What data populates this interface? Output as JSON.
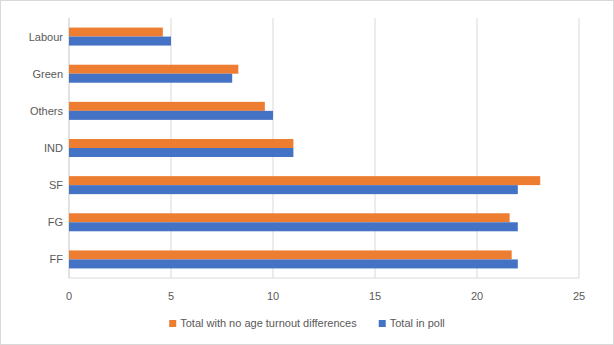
{
  "chart_data": {
    "type": "bar",
    "orientation": "horizontal",
    "categories": [
      "FF",
      "FG",
      "SF",
      "IND",
      "Others",
      "Green",
      "Labour"
    ],
    "series": [
      {
        "name": "Total with no age turnout differences",
        "color": "#ed7d31",
        "values": [
          21.7,
          21.6,
          23.1,
          11.0,
          9.6,
          8.3,
          4.6
        ]
      },
      {
        "name": "Total in poll",
        "color": "#4472c4",
        "values": [
          22.0,
          22.0,
          22.0,
          11.0,
          10.0,
          8.0,
          5.0
        ]
      }
    ],
    "xlim": [
      0,
      25
    ],
    "xticks": [
      0,
      5,
      10,
      15,
      20,
      25
    ],
    "grid": true,
    "legend": "bottom"
  }
}
